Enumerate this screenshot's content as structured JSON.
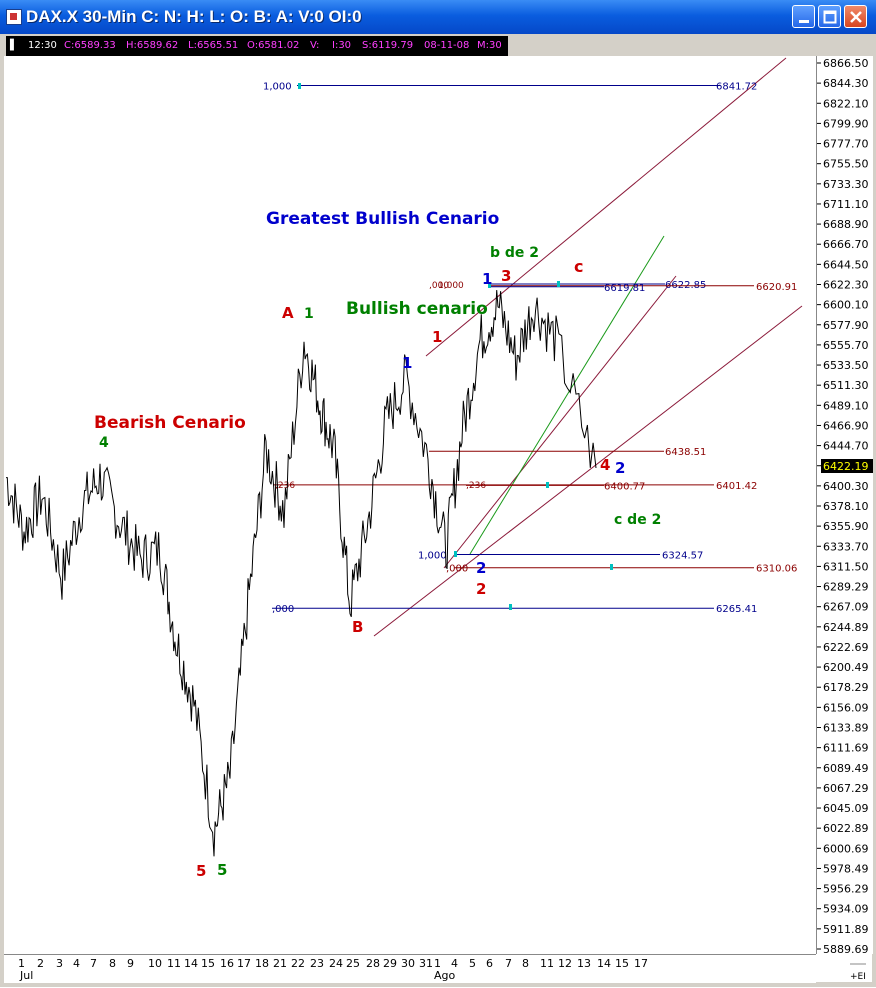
{
  "window": {
    "title": "DAX.X 30-Min C: N: H: L: O: B: A: V:0 OI:0",
    "buttons": [
      "minimize",
      "maximize",
      "close"
    ]
  },
  "infobar": {
    "time": "12:30",
    "close": "C:6589.33",
    "high": "H:6589.62",
    "low": "L:6565.51",
    "open": "O:6581.02",
    "vol": "V:",
    "interval": "I:30",
    "s": "S:6119.79",
    "date": "08-11-08",
    "m": "M:30"
  },
  "chart_data": {
    "type": "line",
    "title": "DAX.X 30-Min",
    "last_price": "6422.19",
    "y_axis": {
      "ticks": [
        "6866.50",
        "6844.30",
        "6822.10",
        "6799.90",
        "6777.70",
        "6755.50",
        "6733.30",
        "6711.10",
        "6688.90",
        "6666.70",
        "6644.50",
        "6622.30",
        "6600.10",
        "6577.90",
        "6555.70",
        "6533.50",
        "6511.30",
        "6489.10",
        "6466.90",
        "6444.70",
        "6422.50",
        "6400.30",
        "6378.10",
        "6355.90",
        "6333.70",
        "6311.50",
        "6289.29",
        "6267.09",
        "6244.89",
        "6222.69",
        "6200.49",
        "6178.29",
        "6156.09",
        "6133.89",
        "6111.69",
        "6089.49",
        "6067.29",
        "6045.09",
        "6022.89",
        "6000.69",
        "5978.49",
        "5956.29",
        "5934.09",
        "5911.89",
        "5889.69"
      ],
      "ylim": [
        5889.69,
        6866.5
      ]
    },
    "x_axis": {
      "ticks": [
        "1",
        "2",
        "3",
        "4",
        "7",
        "8",
        "9",
        "10",
        "11",
        "14",
        "15",
        "16",
        "17",
        "18",
        "21",
        "22",
        "23",
        "24",
        "25",
        "28",
        "29",
        "30",
        "31",
        "1",
        "4",
        "5",
        "6",
        "7",
        "8",
        "11",
        "12",
        "13",
        "14",
        "15",
        "17"
      ],
      "months": [
        "Jul",
        "Ago"
      ],
      "corner_label": "+EI"
    },
    "levels": [
      {
        "label": "1,000",
        "value": 6841.72,
        "text": "6841.72",
        "color": "#00008b"
      },
      {
        "label": "",
        "value": 6622.85,
        "text": "6622.85",
        "color": "#00008b"
      },
      {
        "label": "",
        "value": 6620.91,
        "text": "6620.91",
        "color": "#8b0000"
      },
      {
        "label": "",
        "value": 6619.81,
        "text": "6619.81",
        "color": "#00008b"
      },
      {
        "label": "",
        "value": 6438.51,
        "text": "6438.51",
        "color": "#8b0000"
      },
      {
        "label": "",
        "value": 6401.42,
        "text": "6401.42",
        "color": "#8b0000"
      },
      {
        "label": "",
        "value": 6400.77,
        "text": "6400.77",
        "color": "#8b0000"
      },
      {
        "label": "1,000",
        "value": 6324.57,
        "text": "6324.57",
        "color": "#00008b"
      },
      {
        "label": ",000",
        "value": 6310.06,
        "text": "6310.06",
        "color": "#8b0000"
      },
      {
        "label": ",000",
        "value": 6265.41,
        "text": "6265.41",
        "color": "#00008b"
      }
    ],
    "fib_small_labels": [
      ",000",
      "1,000",
      ",236",
      ",236",
      ",000",
      ",000"
    ],
    "annotations": [
      {
        "text": "Greatest Bullish Cenario",
        "color": "#0000cc"
      },
      {
        "text": "Bullish cenario",
        "color": "#008000"
      },
      {
        "text": "Bearish Cenario",
        "color": "#cc0000"
      },
      {
        "text": "b de 2",
        "color": "#008000"
      },
      {
        "text": "c de 2",
        "color": "#008000"
      },
      {
        "text": "A",
        "color": "#cc0000"
      },
      {
        "text": "1",
        "color": "#008000"
      },
      {
        "text": "1",
        "color": "#cc0000"
      },
      {
        "text": "1",
        "color": "#0000cc"
      },
      {
        "text": "1",
        "color": "#0000cc"
      },
      {
        "text": "3",
        "color": "#cc0000"
      },
      {
        "text": "c",
        "color": "#cc0000"
      },
      {
        "text": "4",
        "color": "#008000"
      },
      {
        "text": "4",
        "color": "#cc0000"
      },
      {
        "text": "2",
        "color": "#0000cc"
      },
      {
        "text": "2",
        "color": "#0000cc"
      },
      {
        "text": "2",
        "color": "#cc0000"
      },
      {
        "text": "B",
        "color": "#cc0000"
      },
      {
        "text": "5",
        "color": "#cc0000"
      },
      {
        "text": "5",
        "color": "#008000"
      }
    ],
    "series": [
      {
        "name": "DAX.X price path (approx)",
        "x": [
          "Jul 1",
          "Jul 2",
          "Jul 3",
          "Jul 4",
          "Jul 7",
          "Jul 8",
          "Jul 9",
          "Jul 10",
          "Jul 11",
          "Jul 14",
          "Jul 15",
          "Jul 16",
          "Jul 17",
          "Jul 18",
          "Jul 21",
          "Jul 22",
          "Jul 23",
          "Jul 24",
          "Jul 25",
          "Jul 28",
          "Jul 29",
          "Jul 30",
          "Jul 31",
          "Ago 1",
          "Ago 4",
          "Ago 5",
          "Ago 6",
          "Ago 7",
          "Ago 8",
          "Ago 11",
          "Ago 12",
          "Ago 13"
        ],
        "values": [
          6410,
          6350,
          6390,
          6300,
          6380,
          6410,
          6360,
          6320,
          6330,
          6230,
          6160,
          6020,
          6080,
          6270,
          6440,
          6370,
          6560,
          6490,
          6440,
          6270,
          6360,
          6470,
          6520,
          6430,
          6330,
          6460,
          6560,
          6600,
          6540,
          6600,
          6560,
          6420
        ]
      }
    ]
  }
}
